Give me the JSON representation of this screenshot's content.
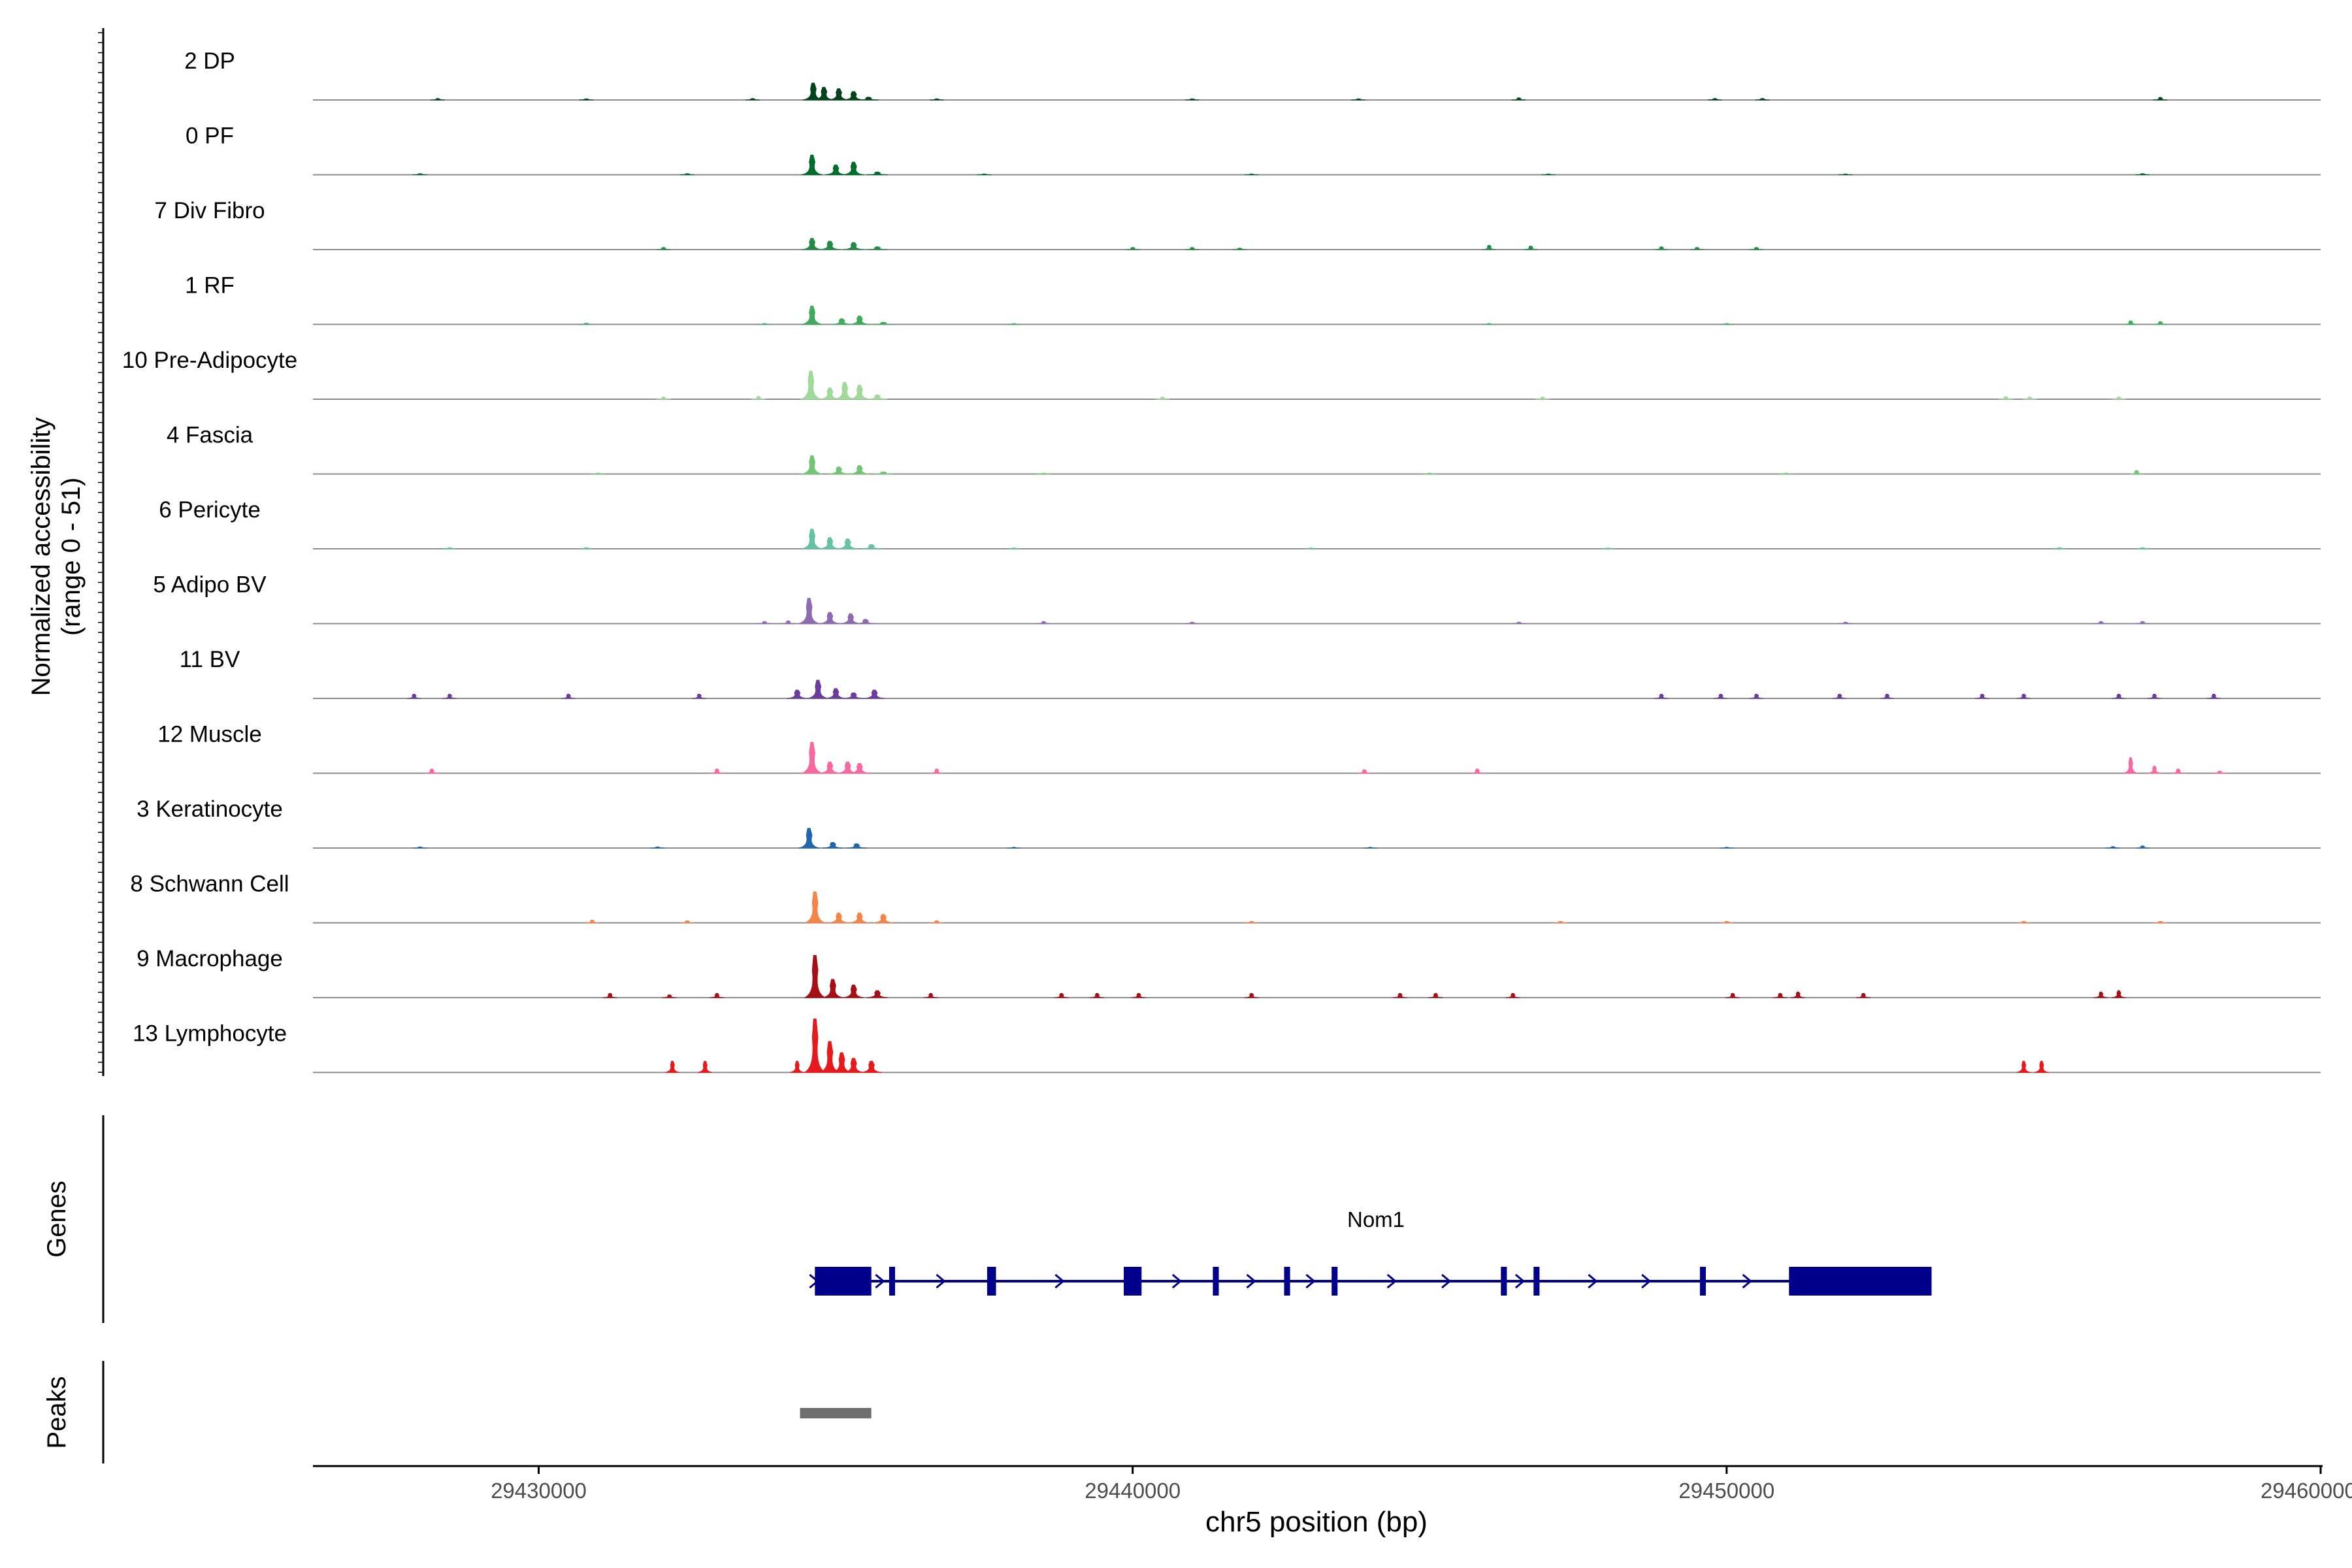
{
  "chart_data": {
    "type": "area",
    "title": "",
    "y_axis_title_line1": "Normalized accessibility",
    "y_axis_title_line2": "(range 0 - 51)",
    "ylim": [
      0,
      51
    ],
    "xlabel": "chr5 position (bp)",
    "xlim": [
      29426200,
      29460000
    ],
    "x_ticks": [
      29430000,
      29440000,
      29450000,
      29460000
    ],
    "x_tick_labels": [
      "29430000",
      "29440000",
      "29450000",
      "29460000"
    ],
    "genes_track_label": "Genes",
    "peaks_track_label": "Peaks",
    "gene": {
      "name": "Nom1",
      "strand": "+",
      "start": 29434650,
      "end": 29453450,
      "exons": [
        [
          29434650,
          29435600
        ],
        [
          29435900,
          29436000
        ],
        [
          29437550,
          29437700
        ],
        [
          29439850,
          29440150
        ],
        [
          29441350,
          29441450
        ],
        [
          29442550,
          29442650
        ],
        [
          29443350,
          29443450
        ],
        [
          29446200,
          29446300
        ],
        [
          29446750,
          29446850
        ],
        [
          29449550,
          29449650
        ],
        [
          29451050,
          29453450
        ]
      ],
      "color": "#00008B"
    },
    "peaks": [
      {
        "start": 29434400,
        "end": 29435600,
        "color": "#6e6e6e"
      }
    ],
    "series": [
      {
        "name": "2 DP",
        "color": "#00441b",
        "peaks": [
          [
            29434620,
            12
          ],
          [
            29434800,
            9
          ],
          [
            29435050,
            8
          ],
          [
            29435300,
            6
          ],
          [
            29435550,
            2
          ]
        ],
        "minor": [
          [
            29428300,
            1
          ],
          [
            29430800,
            0.8
          ],
          [
            29433600,
            1
          ],
          [
            29436700,
            0.8
          ],
          [
            29441000,
            0.8
          ],
          [
            29443800,
            0.8
          ],
          [
            29446500,
            1.5
          ],
          [
            29449800,
            1
          ],
          [
            29450600,
            1
          ],
          [
            29457300,
            1.8
          ]
        ]
      },
      {
        "name": "0 PF",
        "color": "#006d2c",
        "peaks": [
          [
            29434600,
            14
          ],
          [
            29435000,
            7
          ],
          [
            29435300,
            9
          ],
          [
            29435700,
            2
          ]
        ],
        "minor": [
          [
            29428000,
            0.8
          ],
          [
            29432500,
            0.8
          ],
          [
            29437500,
            0.6
          ],
          [
            29442000,
            0.6
          ],
          [
            29447000,
            0.6
          ],
          [
            29452000,
            0.6
          ],
          [
            29457000,
            0.8
          ]
        ]
      },
      {
        "name": "7 Div Fibro",
        "color": "#238b45",
        "peaks": [
          [
            29434600,
            8
          ],
          [
            29434900,
            6
          ],
          [
            29435300,
            5
          ],
          [
            29435700,
            2
          ]
        ],
        "minor": [
          [
            29432100,
            1.5
          ],
          [
            29440000,
            1.5
          ],
          [
            29441000,
            1.5
          ],
          [
            29441800,
            1
          ],
          [
            29446000,
            3
          ],
          [
            29446700,
            2.5
          ],
          [
            29448900,
            2
          ],
          [
            29449500,
            1.5
          ],
          [
            29450500,
            1.5
          ]
        ]
      },
      {
        "name": "1 RF",
        "color": "#41ab5d",
        "peaks": [
          [
            29434600,
            13
          ],
          [
            29435100,
            4
          ],
          [
            29435400,
            6
          ],
          [
            29435800,
            1.5
          ]
        ],
        "minor": [
          [
            29430800,
            0.8
          ],
          [
            29433800,
            0.6
          ],
          [
            29438000,
            0.6
          ],
          [
            29446000,
            0.6
          ],
          [
            29450000,
            0.6
          ],
          [
            29456800,
            2.5
          ],
          [
            29457300,
            2
          ]
        ]
      },
      {
        "name": "10 Pre-Adipocyte",
        "color": "#a1d99b",
        "peaks": [
          [
            29434580,
            20
          ],
          [
            29434900,
            8
          ],
          [
            29435150,
            12
          ],
          [
            29435400,
            10
          ],
          [
            29435700,
            3
          ]
        ],
        "minor": [
          [
            29432100,
            1.5
          ],
          [
            29433700,
            2
          ],
          [
            29440500,
            1.5
          ],
          [
            29446900,
            1.5
          ],
          [
            29454700,
            1.8
          ],
          [
            29455100,
            1.5
          ],
          [
            29456600,
            1.5
          ]
        ]
      },
      {
        "name": "4 Fascia",
        "color": "#74c476",
        "peaks": [
          [
            29434600,
            13
          ],
          [
            29435050,
            5
          ],
          [
            29435400,
            6
          ],
          [
            29435800,
            1.5
          ]
        ],
        "minor": [
          [
            29431000,
            0.6
          ],
          [
            29438500,
            0.6
          ],
          [
            29445000,
            0.6
          ],
          [
            29451000,
            0.6
          ],
          [
            29456900,
            2.5
          ]
        ]
      },
      {
        "name": "6 Pericyte",
        "color": "#66c2a4",
        "peaks": [
          [
            29434600,
            14
          ],
          [
            29434900,
            8
          ],
          [
            29435200,
            7
          ],
          [
            29435600,
            3
          ]
        ],
        "minor": [
          [
            29428500,
            0.8
          ],
          [
            29430800,
            0.8
          ],
          [
            29438000,
            0.6
          ],
          [
            29443000,
            0.6
          ],
          [
            29448000,
            0.6
          ],
          [
            29455600,
            0.8
          ],
          [
            29457000,
            0.8
          ]
        ]
      },
      {
        "name": "5 Adipo BV",
        "color": "#8c6bb1",
        "peaks": [
          [
            29434550,
            18
          ],
          [
            29434900,
            8
          ],
          [
            29435250,
            7
          ],
          [
            29435500,
            3
          ]
        ],
        "minor": [
          [
            29433800,
            1.5
          ],
          [
            29434200,
            2
          ],
          [
            29438500,
            1.5
          ],
          [
            29441000,
            1
          ],
          [
            29446500,
            1
          ],
          [
            29452000,
            1
          ],
          [
            29456300,
            1.5
          ],
          [
            29457000,
            1.5
          ]
        ]
      },
      {
        "name": "11 BV",
        "color": "#6a3d9a",
        "peaks": [
          [
            29434350,
            6
          ],
          [
            29434700,
            13
          ],
          [
            29435000,
            7
          ],
          [
            29435300,
            4
          ],
          [
            29435650,
            6
          ]
        ],
        "minor": [
          [
            29427900,
            3
          ],
          [
            29428500,
            3
          ],
          [
            29430500,
            3
          ],
          [
            29432700,
            3
          ],
          [
            29448900,
            3
          ],
          [
            29449900,
            3
          ],
          [
            29450500,
            3
          ],
          [
            29451900,
            3
          ],
          [
            29452700,
            3
          ],
          [
            29454300,
            3
          ],
          [
            29455000,
            3
          ],
          [
            29456600,
            3
          ],
          [
            29457200,
            3
          ],
          [
            29458200,
            3
          ]
        ]
      },
      {
        "name": "12 Muscle",
        "color": "#f768a1",
        "peaks": [
          [
            29434600,
            22
          ],
          [
            29434900,
            8
          ],
          [
            29435200,
            8
          ],
          [
            29435400,
            7
          ]
        ],
        "minor": [
          [
            29428200,
            3
          ],
          [
            29433000,
            3
          ],
          [
            29436700,
            3
          ],
          [
            29443900,
            2.5
          ],
          [
            29445800,
            3
          ],
          [
            29456800,
            11
          ],
          [
            29457200,
            5
          ],
          [
            29457600,
            3
          ],
          [
            29458300,
            1.5
          ]
        ]
      },
      {
        "name": "3 Keratinocyte",
        "color": "#2166ac",
        "peaks": [
          [
            29434550,
            14
          ],
          [
            29434950,
            4
          ],
          [
            29435350,
            3
          ]
        ],
        "minor": [
          [
            29428000,
            0.8
          ],
          [
            29432000,
            0.8
          ],
          [
            29438000,
            0.6
          ],
          [
            29444000,
            0.6
          ],
          [
            29450000,
            0.6
          ],
          [
            29456500,
            1
          ],
          [
            29457000,
            1.5
          ]
        ]
      },
      {
        "name": "8 Schwann Cell",
        "color": "#f4854a",
        "peaks": [
          [
            29434650,
            22
          ],
          [
            29435050,
            7
          ],
          [
            29435400,
            7
          ],
          [
            29435800,
            6
          ]
        ],
        "minor": [
          [
            29430900,
            2
          ],
          [
            29432500,
            1.5
          ],
          [
            29436700,
            1.5
          ],
          [
            29442000,
            1
          ],
          [
            29447200,
            1
          ],
          [
            29450000,
            1
          ],
          [
            29455000,
            1
          ],
          [
            29457300,
            1
          ]
        ]
      },
      {
        "name": "9 Macrophage",
        "color": "#a50f15",
        "peaks": [
          [
            29434650,
            30
          ],
          [
            29434950,
            13
          ],
          [
            29435300,
            9
          ],
          [
            29435700,
            5
          ]
        ],
        "minor": [
          [
            29431200,
            3
          ],
          [
            29432200,
            2
          ],
          [
            29433000,
            3
          ],
          [
            29436600,
            3
          ],
          [
            29438800,
            3
          ],
          [
            29439400,
            3
          ],
          [
            29440100,
            3
          ],
          [
            29442000,
            3
          ],
          [
            29444500,
            3
          ],
          [
            29445100,
            3
          ],
          [
            29446400,
            3
          ],
          [
            29450100,
            3
          ],
          [
            29450900,
            3
          ],
          [
            29451200,
            4
          ],
          [
            29452300,
            3
          ],
          [
            29456300,
            4
          ],
          [
            29456600,
            5
          ]
        ]
      },
      {
        "name": "13 Lymphocyte",
        "color": "#e41a1c",
        "peaks": [
          [
            29434650,
            38
          ],
          [
            29434900,
            22
          ],
          [
            29435100,
            14
          ],
          [
            29435300,
            10
          ],
          [
            29435600,
            8
          ]
        ],
        "minor": [
          [
            29432250,
            8
          ],
          [
            29432800,
            8
          ],
          [
            29434350,
            8
          ],
          [
            29455000,
            8
          ],
          [
            29455300,
            8
          ]
        ]
      }
    ]
  }
}
